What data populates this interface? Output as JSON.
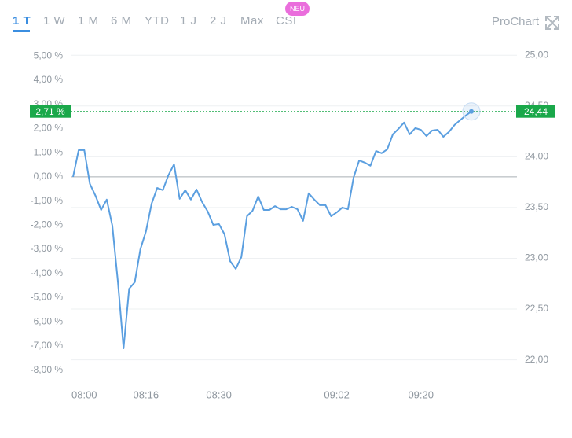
{
  "tabs": [
    "1 T",
    "1 W",
    "1 M",
    "6 M",
    "YTD",
    "1 J",
    "2 J",
    "Max",
    "CSI"
  ],
  "badge": "NEU",
  "prochart": "ProChart",
  "chart_data": {
    "type": "line",
    "categories": [
      null,
      null,
      "08:00",
      null,
      null,
      null,
      null,
      null,
      null,
      null,
      null,
      null,
      null,
      "08:16",
      null,
      null,
      null,
      null,
      null,
      null,
      null,
      null,
      null,
      null,
      null,
      null,
      "08:30",
      null,
      null,
      null,
      null,
      null,
      null,
      null,
      null,
      null,
      null,
      null,
      null,
      null,
      null,
      null,
      null,
      null,
      null,
      null,
      null,
      "09:02",
      null,
      null,
      null,
      null,
      null,
      null,
      null,
      null,
      null,
      null,
      null,
      null,
      null,
      null,
      "09:20",
      null,
      null,
      null,
      null,
      null,
      null,
      null,
      null,
      null
    ],
    "series": [
      {
        "color": "#5b9fe0",
        "values": [
          0,
          1.11,
          1.11,
          -0.29,
          -0.78,
          -1.37,
          -0.94,
          -2.02,
          -4.36,
          -7.1,
          -4.63,
          -4.36,
          -3.0,
          -2.25,
          -1.11,
          -0.46,
          -0.55,
          0.07,
          0.52,
          -0.91,
          -0.55,
          -0.94,
          -0.52,
          -1.04,
          -1.43,
          -1.99,
          -1.95,
          -2.38,
          -3.49,
          -3.81,
          -3.32,
          -1.63,
          -1.4,
          -0.81,
          -1.37,
          -1.37,
          -1.21,
          -1.34,
          -1.34,
          -1.24,
          -1.34,
          -1.82,
          -0.68,
          -0.94,
          -1.17,
          -1.17,
          -1.63,
          -1.47,
          -1.27,
          -1.34,
          -0.03,
          0.68,
          0.59,
          0.46,
          1.07,
          0.98,
          1.14,
          1.76,
          1.99,
          2.25,
          1.76,
          2.02,
          1.95,
          1.69,
          1.92,
          1.95,
          1.66,
          1.86,
          2.15,
          2.35,
          2.54,
          2.71
        ]
      }
    ],
    "ylim": [
      -8.5,
      5.5
    ],
    "yticks": [
      {
        "value": 5,
        "label": "5,00 %"
      },
      {
        "value": 4,
        "label": "4,00 %"
      },
      {
        "value": 3,
        "label": "3,00 %"
      },
      {
        "value": 2,
        "label": "2,00 %"
      },
      {
        "value": 1,
        "label": "1,00 %"
      },
      {
        "value": 0,
        "label": "0,00 %"
      },
      {
        "value": -1,
        "label": "-1,00 %"
      },
      {
        "value": -2,
        "label": "-2,00 %"
      },
      {
        "value": -3,
        "label": "-3,00 %"
      },
      {
        "value": -4,
        "label": "-4,00 %"
      },
      {
        "value": -5,
        "label": "-5,00 %"
      },
      {
        "value": -6,
        "label": "-6,00 %"
      },
      {
        "value": -7,
        "label": "-7,00 %"
      },
      {
        "value": -8,
        "label": "-8,00 %"
      }
    ],
    "y2lim": [
      21.78,
      25.11
    ],
    "y2ticks": [
      {
        "value": 25,
        "label": "25,00"
      },
      {
        "value": 24.5,
        "label": "24,50"
      },
      {
        "value": 24,
        "label": "24,00"
      },
      {
        "value": 23.5,
        "label": "23,50"
      },
      {
        "value": 23,
        "label": "23,00"
      },
      {
        "value": 22.5,
        "label": "22,50"
      },
      {
        "value": 22,
        "label": "22,00"
      }
    ],
    "reference_line": 0,
    "last_labels": [
      "2,71 %",
      "24,44"
    ],
    "last_color": "#1aa84a"
  }
}
